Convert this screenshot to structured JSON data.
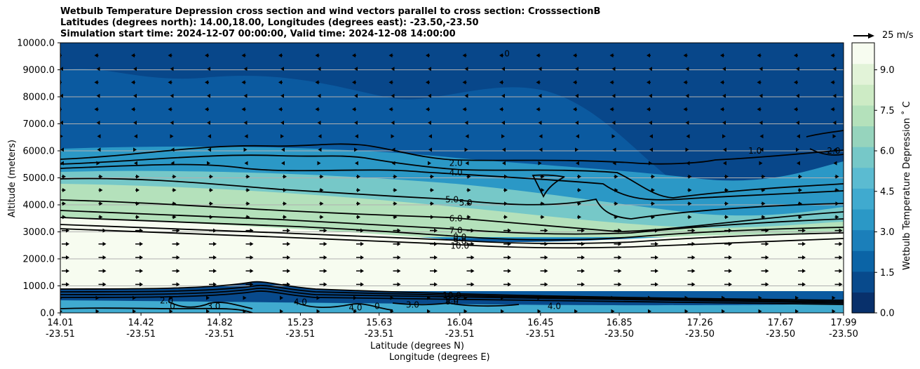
{
  "chart_data": {
    "type": "contour",
    "title": [
      "Wetbulb Temperature Depression cross section and wind vectors parallel to cross section: CrosssectionB",
      "Latitudes (degrees north): 14.00,18.00, Longitudes (degrees east): -23.50,-23.50",
      "Simulation start time: 2024-12-07 00:00:00, Valid time: 2024-12-08 14:00:00"
    ],
    "xlabel": "Latitude (degrees N)",
    "xlabel2": "Longitude (degrees E)",
    "ylabel": "Altitude (meters)",
    "colorbar_label": "Wetbulb Temperature Depression ˚ C",
    "wind_key_label": "25 m/s",
    "xlim": [
      14.01,
      17.99
    ],
    "ylim": [
      0,
      10000
    ],
    "y_ticks": [
      "0.0",
      "1000.0",
      "2000.0",
      "3000.0",
      "4000.0",
      "5000.0",
      "6000.0",
      "7000.0",
      "8000.0",
      "9000.0",
      "10000.0"
    ],
    "x_ticks": [
      {
        "lat": "14.01",
        "lon": "-23.51",
        "v": 14.01
      },
      {
        "lat": "14.42",
        "lon": "-23.51",
        "v": 14.42
      },
      {
        "lat": "14.82",
        "lon": "-23.51",
        "v": 14.82
      },
      {
        "lat": "15.23",
        "lon": "-23.51",
        "v": 15.23
      },
      {
        "lat": "15.63",
        "lon": "-23.51",
        "v": 15.63
      },
      {
        "lat": "16.04",
        "lon": "-23.51",
        "v": 16.04
      },
      {
        "lat": "16.45",
        "lon": "-23.51",
        "v": 16.45
      },
      {
        "lat": "16.85",
        "lon": "-23.50",
        "v": 16.85
      },
      {
        "lat": "17.26",
        "lon": "-23.50",
        "v": 17.26
      },
      {
        "lat": "17.67",
        "lon": "-23.50",
        "v": 17.67
      },
      {
        "lat": "17.99",
        "lon": "-23.50",
        "v": 17.99
      }
    ],
    "colorbar_ticks": [
      "0.0",
      "1.5",
      "3.0",
      "4.5",
      "6.0",
      "7.5",
      "9.0"
    ],
    "colorbar_range": [
      0,
      10
    ],
    "colorbar_colors": [
      "#08306b",
      "#084a8c",
      "#0b64a6",
      "#1b7fba",
      "#2b98c6",
      "#40aacf",
      "#5bbbd1",
      "#76c8c8",
      "#96d4bd",
      "#b4e1bb",
      "#cdebc5",
      "#e2f3d8",
      "#f7fcf0"
    ],
    "contour_labels": [
      {
        "text": "2.0",
        "x": 16.02,
        "y": 5550
      },
      {
        "text": "4.0",
        "x": 16.02,
        "y": 5200
      },
      {
        "text": "5.0",
        "x": 16.0,
        "y": 4200
      },
      {
        "text": "5.0",
        "x": 16.07,
        "y": 4080
      },
      {
        "text": "6.0",
        "x": 16.02,
        "y": 3500
      },
      {
        "text": "7.0",
        "x": 16.02,
        "y": 3050
      },
      {
        "text": "8.0",
        "x": 16.04,
        "y": 2800
      },
      {
        "text": "9.0",
        "x": 16.04,
        "y": 2650
      },
      {
        "text": "10.0",
        "x": 16.04,
        "y": 2480
      },
      {
        "text": "1.0",
        "x": 17.54,
        "y": 6000
      },
      {
        "text": "2.0",
        "x": 17.94,
        "y": 6000
      },
      {
        "text": "0",
        "x": 16.28,
        "y": 9600
      },
      {
        "text": "10.0",
        "x": 16.0,
        "y": 650
      },
      {
        "text": "9.0",
        "x": 16.0,
        "y": 500
      },
      {
        "text": "8.0",
        "x": 16.0,
        "y": 420
      },
      {
        "text": "3.0",
        "x": 15.8,
        "y": 300
      },
      {
        "text": "3.0",
        "x": 14.79,
        "y": 250
      },
      {
        "text": "4.0",
        "x": 15.23,
        "y": 400
      },
      {
        "text": "4.0",
        "x": 15.51,
        "y": 200
      },
      {
        "text": "2.0",
        "x": 14.55,
        "y": 450
      },
      {
        "text": "0",
        "x": 15.62,
        "y": 250
      },
      {
        "text": "0",
        "x": 14.58,
        "y": 250
      },
      {
        "text": "4.0",
        "x": 16.52,
        "y": 250
      }
    ]
  }
}
